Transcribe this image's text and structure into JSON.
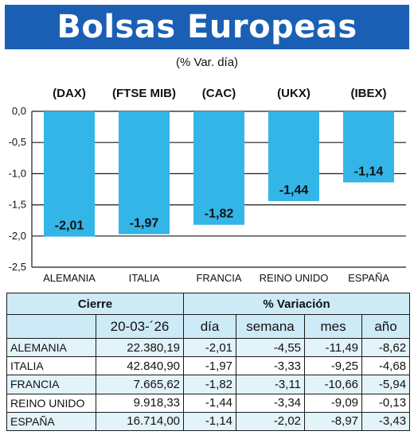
{
  "header": {
    "title": "Bolsas Europeas",
    "subtitle": "(% Var. día)"
  },
  "colors": {
    "banner": "#1a5fb4",
    "bar": "#33b5e8",
    "table_header": "#cdeaf7",
    "table_alt_row": "#e2f3fa"
  },
  "chart_data": {
    "type": "bar",
    "title": "Bolsas Europeas",
    "subtitle": "(% Var. día)",
    "categories": [
      "ALEMANIA",
      "ITALIA",
      "FRANCIA",
      "REINO UNIDO",
      "ESPAÑA"
    ],
    "index_labels": [
      "(DAX)",
      "(FTSE MIB)",
      "(CAC)",
      "(UKX)",
      "(IBEX)"
    ],
    "values": [
      -2.01,
      -1.97,
      -1.82,
      -1.44,
      -1.14
    ],
    "value_labels": [
      "-2,01",
      "-1,97",
      "-1,82",
      "-1,44",
      "-1,14"
    ],
    "ylim": [
      -2.5,
      0
    ],
    "yticks": [
      0,
      -0.5,
      -1,
      -1.5,
      -2,
      -2.5
    ],
    "ytick_labels": [
      "0,0",
      "-0,5",
      "-1,0",
      "-1,5",
      "-2,0",
      "-2,5"
    ],
    "grid": true,
    "xlabel": "",
    "ylabel": ""
  },
  "table": {
    "group_headers": {
      "cierre": "Cierre",
      "variacion": "% Variación"
    },
    "columns": {
      "date": "20-03-´26",
      "dia": "día",
      "semana": "semana",
      "mes": "mes",
      "ano": "año"
    },
    "rows": [
      {
        "country": "ALEMANIA",
        "cierre": "22.380,19",
        "dia": "-2,01",
        "semana": "-4,55",
        "mes": "-11,49",
        "ano": "-8,62"
      },
      {
        "country": "ITALIA",
        "cierre": "42.840,90",
        "dia": "-1,97",
        "semana": "-3,33",
        "mes": "-9,25",
        "ano": "-4,68"
      },
      {
        "country": "FRANCIA",
        "cierre": "7.665,62",
        "dia": "-1,82",
        "semana": "-3,11",
        "mes": "-10,66",
        "ano": "-5,94"
      },
      {
        "country": "REINO UNIDO",
        "cierre": "9.918,33",
        "dia": "-1,44",
        "semana": "-3,34",
        "mes": "-9,09",
        "ano": "-0,13"
      },
      {
        "country": "ESPAÑA",
        "cierre": "16.714,00",
        "dia": "-1,14",
        "semana": "-2,02",
        "mes": "-8,97",
        "ano": "-3,43"
      }
    ]
  }
}
